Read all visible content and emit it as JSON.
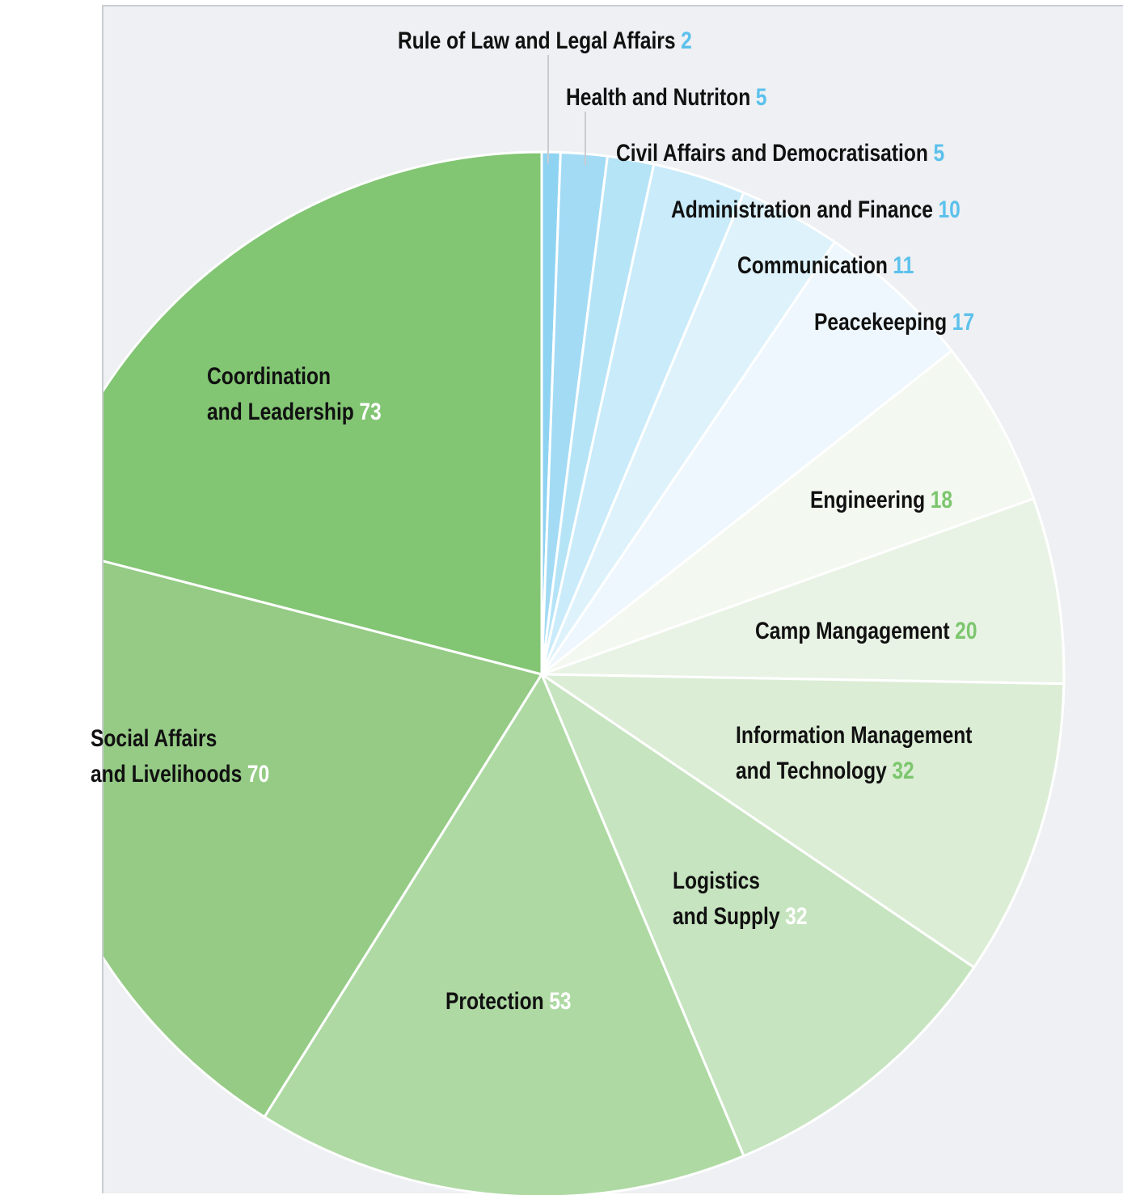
{
  "chart_data": {
    "type": "pie",
    "start": "12 o'clock",
    "direction": "clockwise",
    "slices": [
      {
        "lines": [
          "Rule of Law and Legal Affairs"
        ],
        "value": 2,
        "color": "#8fd3f2",
        "valueColor": "#5bc1ec"
      },
      {
        "lines": [
          "Health and Nutriton"
        ],
        "value": 5,
        "color": "#a3dbf5",
        "valueColor": "#5bc1ec"
      },
      {
        "lines": [
          "Civil Affairs and Democratisation"
        ],
        "value": 5,
        "color": "#b6e4f7",
        "valueColor": "#5bc1ec"
      },
      {
        "lines": [
          "Administration and Finance"
        ],
        "value": 10,
        "color": "#c9ebfa",
        "valueColor": "#5bc1ec"
      },
      {
        "lines": [
          "Communication"
        ],
        "value": 11,
        "color": "#def2fb",
        "valueColor": "#5bc1ec"
      },
      {
        "lines": [
          "Peacekeeping"
        ],
        "value": 17,
        "color": "#eef7fd",
        "valueColor": "#5bc1ec"
      },
      {
        "lines": [
          "Engineering"
        ],
        "value": 18,
        "color": "#f3f8f0",
        "valueColor": "#7cc66e"
      },
      {
        "lines": [
          "Camp Mangagement"
        ],
        "value": 20,
        "color": "#e9f3e5",
        "valueColor": "#7cc66e"
      },
      {
        "lines": [
          "Information Management",
          "and Technology"
        ],
        "value": 32,
        "color": "#dcedd6",
        "valueColor": "#7cc66e"
      },
      {
        "lines": [
          "Logistics",
          "and Supply"
        ],
        "value": 32,
        "color": "#c6e4bf",
        "valueColor": "#ffffff"
      },
      {
        "lines": [
          "Protection"
        ],
        "value": 53,
        "color": "#aed9a3",
        "valueColor": "#ffffff"
      },
      {
        "lines": [
          "Social Affairs",
          "and Livelihoods"
        ],
        "value": 70,
        "color": "#95cb85",
        "valueColor": "#ffffff"
      },
      {
        "lines": [
          "Coordination",
          "and Leadership"
        ],
        "value": 73,
        "color": "#82c573",
        "valueColor": "#ffffff"
      }
    ]
  }
}
